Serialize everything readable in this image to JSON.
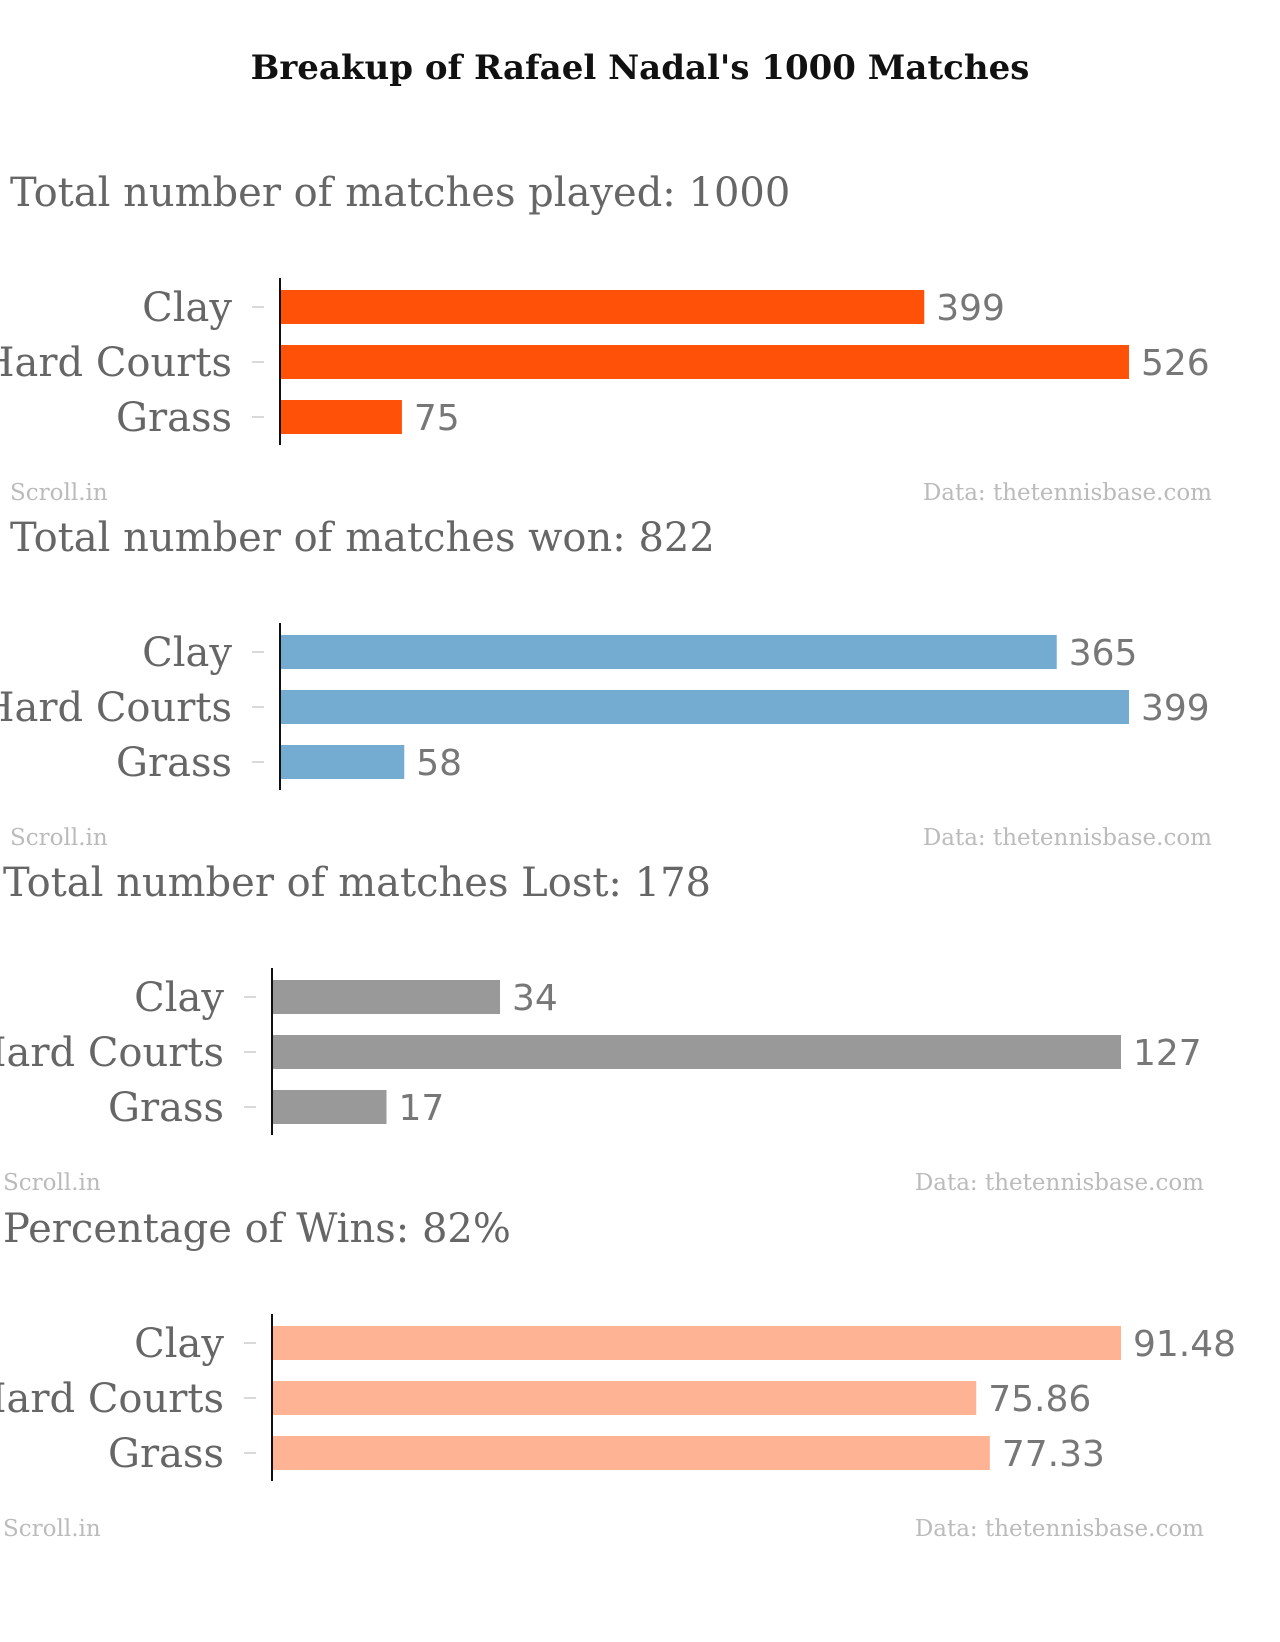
{
  "title": "Breakup of Rafael Nadal's 1000 Matches",
  "footer": {
    "source_left": "Scroll.in",
    "source_right": "Data: thetennisbase.com"
  },
  "chart_data": [
    {
      "type": "bar",
      "orientation": "horizontal",
      "title": "Total number of matches played: 1000",
      "categories": [
        "Clay",
        "Hard Courts",
        "Grass"
      ],
      "values": [
        399,
        526,
        75
      ],
      "value_labels": [
        "399",
        "526",
        "75"
      ],
      "xlim": [
        0,
        526
      ],
      "color": "#ff5107",
      "grid": false
    },
    {
      "type": "bar",
      "orientation": "horizontal",
      "title": "Total number of matches won: 822",
      "categories": [
        "Clay",
        "Hard Courts",
        "Grass"
      ],
      "values": [
        365,
        399,
        58
      ],
      "value_labels": [
        "365",
        "399",
        "58"
      ],
      "xlim": [
        0,
        399
      ],
      "color": "#74abd1",
      "grid": false
    },
    {
      "type": "bar",
      "orientation": "horizontal",
      "title": "Total number of matches Lost: 178",
      "categories": [
        "Clay",
        "Hard Courts",
        "Grass"
      ],
      "values": [
        34,
        127,
        17
      ],
      "value_labels": [
        "34",
        "127",
        "17"
      ],
      "xlim": [
        0,
        127
      ],
      "color": "#999999",
      "grid": false
    },
    {
      "type": "bar",
      "orientation": "horizontal",
      "title": "Percentage of Wins: 82%",
      "categories": [
        "Clay",
        "Hard Courts",
        "Grass"
      ],
      "values": [
        91.48,
        75.86,
        77.33
      ],
      "value_labels": [
        "91.48",
        "75.86",
        "77.33"
      ],
      "xlim": [
        0,
        91.48
      ],
      "color": "#fdb394",
      "grid": false
    }
  ]
}
